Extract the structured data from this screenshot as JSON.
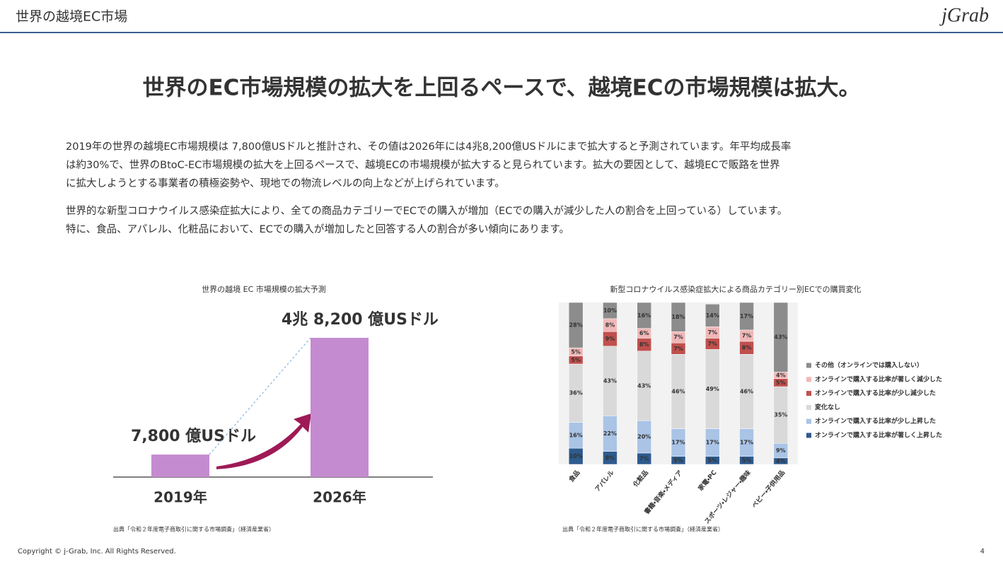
{
  "header": {
    "title": "世界の越境EC市場",
    "logo": "jGrab"
  },
  "headline": "世界のEC市場規模の拡大を上回るペースで、越境ECの市場規模は拡大。",
  "paragraphs": [
    [
      "2019年の世界の越境EC市場規模は 7,800億USドルと推計され、その値は2026年には4兆8,200億USドルにまで拡大すると予測されています。年平均成長率",
      "は約30%で、世界のBtoC-EC市場規模の拡大を上回るペースで、越境ECの市場規模が拡大すると見られています。拡大の要因として、越境ECで販路を世界",
      "に拡大しようとする事業者の積極姿勢や、現地での物流レベルの向上などが上げられています。"
    ],
    [
      "世界的な新型コロナウイルス感染症拡大により、全ての商品カテゴリーでECでの購入が増加（ECでの購入が減少した人の割合を上回っている）しています。",
      "特に、食品、アパレル、化粧品において、ECでの購入が増加したと回答する人の割合が多い傾向にあります。"
    ]
  ],
  "chart_data": [
    {
      "type": "bar",
      "title": "世界の越境 EC 市場規模の拡大予測",
      "categories": [
        "2019年",
        "2026年"
      ],
      "values": [
        7800,
        48200
      ],
      "value_labels": [
        "7,800 億USドル",
        "4兆 8,200 億USドル"
      ],
      "color": "#c58bd0"
    },
    {
      "type": "stacked_bar",
      "title": "新型コロナウイルス感染症拡大による商品カテゴリー別ECでの購買変化",
      "categories": [
        "食品",
        "アパレル",
        "化粧品",
        "書籍・音楽・メディア",
        "家電・PC",
        "スポーツ・レジャー・趣味",
        "ベビー・子供用品"
      ],
      "ylim": [
        0,
        100
      ],
      "legend": "right",
      "series": [
        {
          "name": "オンラインで購入する比率が著しく上昇した",
          "color": "#2e5a8e",
          "values": [
            10,
            8,
            7,
            5,
            5,
            5,
            4
          ],
          "value_labels": [
            "10%",
            "8%",
            "7%",
            "5%",
            "5%",
            "5%",
            "4%"
          ]
        },
        {
          "name": "オンラインで購入する比率が少し上昇した",
          "color": "#aac4e6",
          "values": [
            16,
            22,
            20,
            17,
            17,
            17,
            9
          ],
          "value_labels": [
            "16%",
            "22%",
            "20%",
            "17%",
            "17%",
            "17%",
            "9%"
          ]
        },
        {
          "name": "変化なし",
          "color": "#d9d9d9",
          "values": [
            36,
            43,
            43,
            46,
            49,
            46,
            35
          ],
          "value_labels": [
            "36%",
            "43%",
            "43%",
            "46%",
            "49%",
            "46%",
            "35%"
          ]
        },
        {
          "name": "オンラインで購入する比率が少し減少した",
          "color": "#c0504d",
          "values": [
            5,
            9,
            8,
            7,
            7,
            8,
            5
          ],
          "value_labels": [
            "5%",
            "9%",
            "8%",
            "7%",
            "7%",
            "8%",
            "5%"
          ]
        },
        {
          "name": "オンラインで購入する比率が著しく減少した",
          "color": "#f0b8b8",
          "values": [
            5,
            8,
            6,
            7,
            7,
            7,
            4
          ],
          "value_labels": [
            "5%",
            "8%",
            "6%",
            "7%",
            "7%",
            "7%",
            "4%"
          ]
        },
        {
          "name": "その他（オンラインでは購入しない）",
          "color": "#8c8c8c",
          "values": [
            28,
            10,
            16,
            18,
            14,
            17,
            43
          ],
          "value_labels": [
            "28%",
            "10%",
            "16%",
            "18%",
            "14%",
            "17%",
            "43%"
          ]
        }
      ]
    }
  ],
  "sources": [
    "出典「令和２年度電子商取引に関する市場調査」（経済産業省）",
    "出典「令和２年度電子商取引に関する市場調査」（経済産業省）"
  ],
  "footer": {
    "copyright": "Copyright © j-Grab, Inc. All Rights Reserved.",
    "page": "4"
  }
}
